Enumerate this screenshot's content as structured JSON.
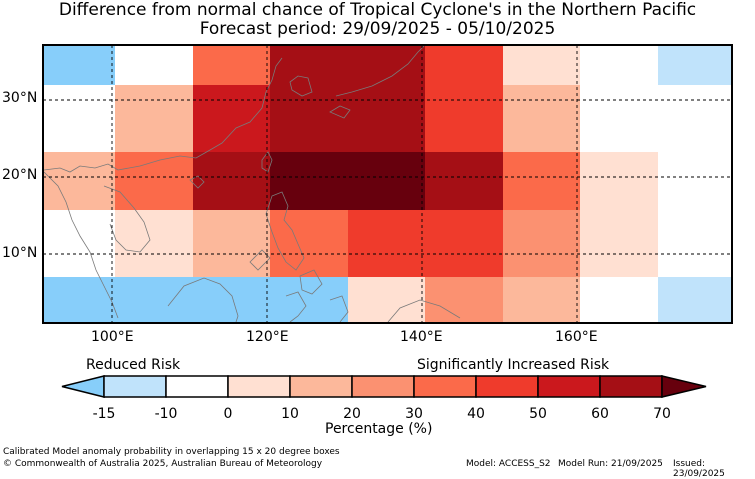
{
  "title": {
    "line1": "Difference from normal chance of Tropical Cyclone's in the Northern Pacific",
    "line2": "Forecast period: 29/09/2025 - 05/10/2025"
  },
  "map": {
    "lon_range": [
      91,
      182
    ],
    "lat_range": [
      0,
      36
    ],
    "x_ticks": [
      "100°E",
      "120°E",
      "140°E",
      "160°E"
    ],
    "y_ticks": [
      "30°N",
      "20°N",
      "10°N"
    ],
    "cell_colors": {
      "blue": "#87cefa",
      "light_blue": "#c0e3fb",
      "white": "#ffffff",
      "v1": "#ffe0d2",
      "v2": "#fcb89b",
      "v3": "#fb9171",
      "v4": "#fb6a4a",
      "v5": "#ef3b2c",
      "v6": "#cb181d",
      "v7": "#a50f15",
      "v8": "#67000d"
    }
  },
  "legend": {
    "left_label": "Reduced Risk",
    "right_label": "Significantly Increased Risk",
    "ticks": [
      "-15",
      "-10",
      "0",
      "10",
      "20",
      "30",
      "40",
      "50",
      "60",
      "70"
    ],
    "xlabel": "Percentage (%)",
    "colors": [
      "#87cefa",
      "#c0e3fb",
      "#ffffff",
      "#ffe0d2",
      "#fcb89b",
      "#fb9171",
      "#fb6a4a",
      "#ef3b2c",
      "#cb181d",
      "#a50f15",
      "#67000d"
    ]
  },
  "footer": {
    "note": "Calibrated Model anomaly probability in overlapping 15 x 20 degree boxes",
    "copyright": "© Commonwealth of Australia 2025, Australian Bureau of Meteorology",
    "model": "Model: ACCESS_S2",
    "run": "Model Run: 21/09/2025",
    "issued": "Issued: 23/09/2025"
  }
}
